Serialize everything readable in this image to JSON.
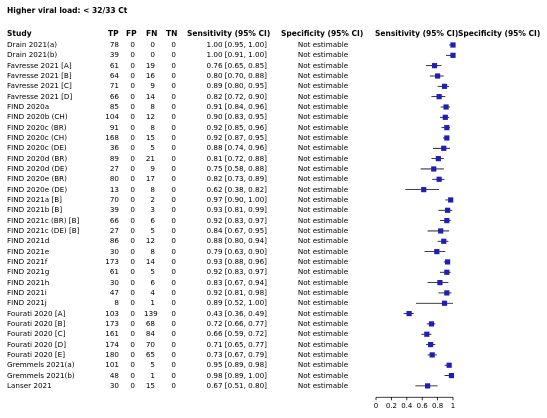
{
  "title": "Higher viral load: < 32/33 Ct",
  "headers": {
    "study": "Study",
    "tp": "TP",
    "fp": "FP",
    "fn": "FN",
    "tn": "TN",
    "sens": "Sensitivity (95% CI)",
    "spec": "Specificity (95% CI)",
    "sens_plot": "Sensitivity (95% CI)",
    "spec_plot": "Specificity (95% CI)"
  },
  "axis_ticks": [
    "0",
    "0.2",
    "0.4",
    "0.6",
    "0.8",
    "1"
  ],
  "colors": {
    "marker": "#1f1fb8",
    "text": "#000000"
  },
  "rows": [
    {
      "study": "Drain 2021(a)",
      "tp": "78",
      "fp": "0",
      "fn": "0",
      "tn": "0",
      "sens": "1.00 [0.95, 1.00]",
      "spec": "Not estimable",
      "est": 1.0,
      "lo": 0.95,
      "hi": 1.0
    },
    {
      "study": "Drain 2021(b)",
      "tp": "39",
      "fp": "0",
      "fn": "0",
      "tn": "0",
      "sens": "1.00 [0.91, 1.00]",
      "spec": "Not estimable",
      "est": 1.0,
      "lo": 0.91,
      "hi": 1.0
    },
    {
      "study": "Favresse 2021 [A]",
      "tp": "61",
      "fp": "0",
      "fn": "19",
      "tn": "0",
      "sens": "0.76 [0.65, 0.85]",
      "spec": "Not estimable",
      "est": 0.76,
      "lo": 0.65,
      "hi": 0.85
    },
    {
      "study": "Favresse 2021 [B]",
      "tp": "64",
      "fp": "0",
      "fn": "16",
      "tn": "0",
      "sens": "0.80 [0.70, 0.88]",
      "spec": "Not estimable",
      "est": 0.8,
      "lo": 0.7,
      "hi": 0.88
    },
    {
      "study": "Favresse 2021 [C]",
      "tp": "71",
      "fp": "0",
      "fn": "9",
      "tn": "0",
      "sens": "0.89 [0.80, 0.95]",
      "spec": "Not estimable",
      "est": 0.89,
      "lo": 0.8,
      "hi": 0.95
    },
    {
      "study": "Favresse 2021 [D]",
      "tp": "66",
      "fp": "0",
      "fn": "14",
      "tn": "0",
      "sens": "0.82 [0.72, 0.90]",
      "spec": "Not estimable",
      "est": 0.82,
      "lo": 0.72,
      "hi": 0.9
    },
    {
      "study": "FIND 2020a",
      "tp": "85",
      "fp": "0",
      "fn": "8",
      "tn": "0",
      "sens": "0.91 [0.84, 0.96]",
      "spec": "Not estimable",
      "est": 0.91,
      "lo": 0.84,
      "hi": 0.96
    },
    {
      "study": "FIND 2020b (CH)",
      "tp": "104",
      "fp": "0",
      "fn": "12",
      "tn": "0",
      "sens": "0.90 [0.83, 0.95]",
      "spec": "Not estimable",
      "est": 0.9,
      "lo": 0.83,
      "hi": 0.95
    },
    {
      "study": "FIND 2020c (BR)",
      "tp": "91",
      "fp": "0",
      "fn": "8",
      "tn": "0",
      "sens": "0.92 [0.85, 0.96]",
      "spec": "Not estimable",
      "est": 0.92,
      "lo": 0.85,
      "hi": 0.96
    },
    {
      "study": "FIND 2020c (CH)",
      "tp": "168",
      "fp": "0",
      "fn": "15",
      "tn": "0",
      "sens": "0.92 [0.87, 0.95]",
      "spec": "Not estimable",
      "est": 0.92,
      "lo": 0.87,
      "hi": 0.95
    },
    {
      "study": "FIND 2020c (DE)",
      "tp": "36",
      "fp": "0",
      "fn": "5",
      "tn": "0",
      "sens": "0.88 [0.74, 0.96]",
      "spec": "Not estimable",
      "est": 0.88,
      "lo": 0.74,
      "hi": 0.96
    },
    {
      "study": "FIND 2020d (BR)",
      "tp": "89",
      "fp": "0",
      "fn": "21",
      "tn": "0",
      "sens": "0.81 [0.72, 0.88]",
      "spec": "Not estimable",
      "est": 0.81,
      "lo": 0.72,
      "hi": 0.88
    },
    {
      "study": "FIND 2020d (DE)",
      "tp": "27",
      "fp": "0",
      "fn": "9",
      "tn": "0",
      "sens": "0.75 [0.58, 0.88]",
      "spec": "Not estimable",
      "est": 0.75,
      "lo": 0.58,
      "hi": 0.88
    },
    {
      "study": "FIND 2020e (BR)",
      "tp": "80",
      "fp": "0",
      "fn": "17",
      "tn": "0",
      "sens": "0.82 [0.73, 0.89]",
      "spec": "Not estimable",
      "est": 0.82,
      "lo": 0.73,
      "hi": 0.89
    },
    {
      "study": "FIND 2020e (DE)",
      "tp": "13",
      "fp": "0",
      "fn": "8",
      "tn": "0",
      "sens": "0.62 [0.38, 0.82]",
      "spec": "Not estimable",
      "est": 0.62,
      "lo": 0.38,
      "hi": 0.82
    },
    {
      "study": "FIND 2021a [B]",
      "tp": "70",
      "fp": "0",
      "fn": "2",
      "tn": "0",
      "sens": "0.97 [0.90, 1.00]",
      "spec": "Not estimable",
      "est": 0.97,
      "lo": 0.9,
      "hi": 1.0
    },
    {
      "study": "FIND 2021b [B]",
      "tp": "39",
      "fp": "0",
      "fn": "3",
      "tn": "0",
      "sens": "0.93 [0.81, 0.99]",
      "spec": "Not estimable",
      "est": 0.93,
      "lo": 0.81,
      "hi": 0.99
    },
    {
      "study": "FIND 2021c (BR) [B]",
      "tp": "66",
      "fp": "0",
      "fn": "6",
      "tn": "0",
      "sens": "0.92 [0.83, 0.97]",
      "spec": "Not estimable",
      "est": 0.92,
      "lo": 0.83,
      "hi": 0.97
    },
    {
      "study": "FIND 2021c (DE) [B]",
      "tp": "27",
      "fp": "0",
      "fn": "5",
      "tn": "0",
      "sens": "0.84 [0.67, 0.95]",
      "spec": "Not estimable",
      "est": 0.84,
      "lo": 0.67,
      "hi": 0.95
    },
    {
      "study": "FIND 2021d",
      "tp": "86",
      "fp": "0",
      "fn": "12",
      "tn": "0",
      "sens": "0.88 [0.80, 0.94]",
      "spec": "Not estimable",
      "est": 0.88,
      "lo": 0.8,
      "hi": 0.94
    },
    {
      "study": "FIND 2021e",
      "tp": "30",
      "fp": "0",
      "fn": "8",
      "tn": "0",
      "sens": "0.79 [0.63, 0.90]",
      "spec": "Not estimable",
      "est": 0.79,
      "lo": 0.63,
      "hi": 0.9
    },
    {
      "study": "FIND 2021f",
      "tp": "173",
      "fp": "0",
      "fn": "14",
      "tn": "0",
      "sens": "0.93 [0.88, 0.96]",
      "spec": "Not estimable",
      "est": 0.93,
      "lo": 0.88,
      "hi": 0.96
    },
    {
      "study": "FIND 2021g",
      "tp": "61",
      "fp": "0",
      "fn": "5",
      "tn": "0",
      "sens": "0.92 [0.83, 0.97]",
      "spec": "Not estimable",
      "est": 0.92,
      "lo": 0.83,
      "hi": 0.97
    },
    {
      "study": "FIND 2021h",
      "tp": "30",
      "fp": "0",
      "fn": "6",
      "tn": "0",
      "sens": "0.83 [0.67, 0.94]",
      "spec": "Not estimable",
      "est": 0.83,
      "lo": 0.67,
      "hi": 0.94
    },
    {
      "study": "FIND 2021i",
      "tp": "47",
      "fp": "0",
      "fn": "4",
      "tn": "0",
      "sens": "0.92 [0.81, 0.98]",
      "spec": "Not estimable",
      "est": 0.92,
      "lo": 0.81,
      "hi": 0.98
    },
    {
      "study": "FIND 2021j",
      "tp": "8",
      "fp": "0",
      "fn": "1",
      "tn": "0",
      "sens": "0.89 [0.52, 1.00]",
      "spec": "Not estimable",
      "est": 0.89,
      "lo": 0.52,
      "hi": 1.0
    },
    {
      "study": "Fourati 2020 [A]",
      "tp": "103",
      "fp": "0",
      "fn": "139",
      "tn": "0",
      "sens": "0.43 [0.36, 0.49]",
      "spec": "Not estimable",
      "est": 0.43,
      "lo": 0.36,
      "hi": 0.49
    },
    {
      "study": "Fourati 2020 [B]",
      "tp": "173",
      "fp": "0",
      "fn": "68",
      "tn": "0",
      "sens": "0.72 [0.66, 0.77]",
      "spec": "Not estimable",
      "est": 0.72,
      "lo": 0.66,
      "hi": 0.77
    },
    {
      "study": "Fourati 2020 [C]",
      "tp": "161",
      "fp": "0",
      "fn": "84",
      "tn": "0",
      "sens": "0.66 [0.59, 0.72]",
      "spec": "Not estimable",
      "est": 0.66,
      "lo": 0.59,
      "hi": 0.72
    },
    {
      "study": "Fourati 2020 [D]",
      "tp": "174",
      "fp": "0",
      "fn": "70",
      "tn": "0",
      "sens": "0.71 [0.65, 0.77]",
      "spec": "Not estimable",
      "est": 0.71,
      "lo": 0.65,
      "hi": 0.77
    },
    {
      "study": "Fourati 2020 [E]",
      "tp": "180",
      "fp": "0",
      "fn": "65",
      "tn": "0",
      "sens": "0.73 [0.67, 0.79]",
      "spec": "Not estimable",
      "est": 0.73,
      "lo": 0.67,
      "hi": 0.79
    },
    {
      "study": "Gremmels 2021(a)",
      "tp": "101",
      "fp": "0",
      "fn": "5",
      "tn": "0",
      "sens": "0.95 [0.89, 0.98]",
      "spec": "Not estimable",
      "est": 0.95,
      "lo": 0.89,
      "hi": 0.98
    },
    {
      "study": "Gremmels 2021(b)",
      "tp": "48",
      "fp": "0",
      "fn": "1",
      "tn": "0",
      "sens": "0.98 [0.89, 1.00]",
      "spec": "Not estimable",
      "est": 0.98,
      "lo": 0.89,
      "hi": 1.0
    },
    {
      "study": "Lanser 2021",
      "tp": "30",
      "fp": "0",
      "fn": "15",
      "tn": "0",
      "sens": "0.67 [0.51, 0.80]",
      "spec": "Not estimable",
      "est": 0.67,
      "lo": 0.51,
      "hi": 0.8
    }
  ],
  "chart_data": {
    "type": "scatter",
    "subtype": "forest-plot",
    "title": "Higher viral load: < 32/33 Ct",
    "xlabel": "Sensitivity (95% CI)",
    "xlim": [
      0,
      1
    ],
    "ticks": [
      0,
      0.2,
      0.4,
      0.6,
      0.8,
      1
    ],
    "categories": [
      "Drain 2021(a)",
      "Drain 2021(b)",
      "Favresse 2021 [A]",
      "Favresse 2021 [B]",
      "Favresse 2021 [C]",
      "Favresse 2021 [D]",
      "FIND 2020a",
      "FIND 2020b (CH)",
      "FIND 2020c (BR)",
      "FIND 2020c (CH)",
      "FIND 2020c (DE)",
      "FIND 2020d (BR)",
      "FIND 2020d (DE)",
      "FIND 2020e (BR)",
      "FIND 2020e (DE)",
      "FIND 2021a [B]",
      "FIND 2021b [B]",
      "FIND 2021c (BR) [B]",
      "FIND 2021c (DE) [B]",
      "FIND 2021d",
      "FIND 2021e",
      "FIND 2021f",
      "FIND 2021g",
      "FIND 2021h",
      "FIND 2021i",
      "FIND 2021j",
      "Fourati 2020 [A]",
      "Fourati 2020 [B]",
      "Fourati 2020 [C]",
      "Fourati 2020 [D]",
      "Fourati 2020 [E]",
      "Gremmels 2021(a)",
      "Gremmels 2021(b)",
      "Lanser 2021"
    ],
    "values": [
      1.0,
      1.0,
      0.76,
      0.8,
      0.89,
      0.82,
      0.91,
      0.9,
      0.92,
      0.92,
      0.88,
      0.81,
      0.75,
      0.82,
      0.62,
      0.97,
      0.93,
      0.92,
      0.84,
      0.88,
      0.79,
      0.93,
      0.92,
      0.83,
      0.92,
      0.89,
      0.43,
      0.72,
      0.66,
      0.71,
      0.73,
      0.95,
      0.98,
      0.67
    ],
    "ci_lower": [
      0.95,
      0.91,
      0.65,
      0.7,
      0.8,
      0.72,
      0.84,
      0.83,
      0.85,
      0.87,
      0.74,
      0.72,
      0.58,
      0.73,
      0.38,
      0.9,
      0.81,
      0.83,
      0.67,
      0.8,
      0.63,
      0.88,
      0.83,
      0.67,
      0.81,
      0.52,
      0.36,
      0.66,
      0.59,
      0.65,
      0.67,
      0.89,
      0.89,
      0.51
    ],
    "ci_upper": [
      1.0,
      1.0,
      0.85,
      0.88,
      0.95,
      0.9,
      0.96,
      0.95,
      0.96,
      0.95,
      0.96,
      0.88,
      0.88,
      0.89,
      0.82,
      1.0,
      0.99,
      0.97,
      0.95,
      0.94,
      0.9,
      0.96,
      0.97,
      0.94,
      0.98,
      1.0,
      0.49,
      0.77,
      0.72,
      0.77,
      0.79,
      0.98,
      1.0,
      0.8
    ]
  }
}
